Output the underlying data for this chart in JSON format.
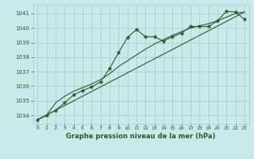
{
  "title": "Graphe pression niveau de la mer (hPa)",
  "bg_color": "#c8eaea",
  "grid_color": "#a8c8c8",
  "line_color": "#2a5c2a",
  "marker_color": "#2a5c2a",
  "xlim": [
    -0.5,
    23.5
  ],
  "ylim": [
    1033.4,
    1041.6
  ],
  "yticks": [
    1034,
    1035,
    1036,
    1037,
    1038,
    1039,
    1040,
    1041
  ],
  "xticks": [
    0,
    1,
    2,
    3,
    4,
    5,
    6,
    7,
    8,
    9,
    10,
    11,
    12,
    13,
    14,
    15,
    16,
    17,
    18,
    19,
    20,
    21,
    22,
    23
  ],
  "series1_x": [
    0,
    1,
    2,
    3,
    4,
    5,
    6,
    7,
    8,
    9,
    10,
    11,
    12,
    13,
    14,
    15,
    16,
    17,
    18,
    19,
    20,
    21,
    22,
    23
  ],
  "series1_y": [
    1033.7,
    1034.0,
    1034.35,
    1034.85,
    1035.4,
    1035.7,
    1035.95,
    1036.3,
    1037.2,
    1038.3,
    1039.35,
    1039.9,
    1039.4,
    1039.4,
    1039.1,
    1039.4,
    1039.65,
    1040.1,
    1040.1,
    1040.1,
    1040.5,
    1041.15,
    1041.1,
    1040.6
  ],
  "series2_x": [
    0,
    1,
    2,
    3,
    4,
    5,
    6,
    7,
    8,
    9,
    10,
    11,
    12,
    13,
    14,
    15,
    16,
    17,
    18,
    19,
    20,
    21,
    22,
    23
  ],
  "series2_y": [
    1033.7,
    1034.0,
    1034.85,
    1035.3,
    1035.65,
    1035.9,
    1036.15,
    1036.45,
    1036.85,
    1037.35,
    1037.75,
    1038.15,
    1038.55,
    1038.9,
    1039.2,
    1039.5,
    1039.75,
    1040.0,
    1040.15,
    1040.3,
    1040.5,
    1040.75,
    1041.0,
    1041.1
  ],
  "series3_x": [
    0,
    23
  ],
  "series3_y": [
    1033.7,
    1041.1
  ]
}
